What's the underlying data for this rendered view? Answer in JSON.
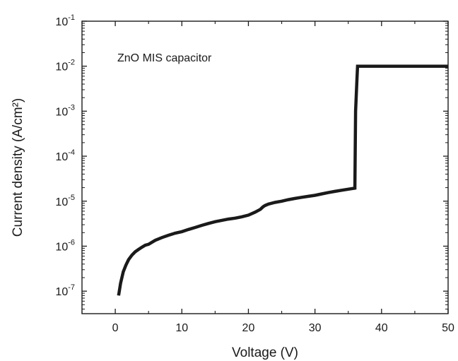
{
  "chart_data": {
    "type": "line",
    "xlabel": "Voltage (V)",
    "ylabel": "Current density (A/cm²)",
    "annotation": "ZnO MIS capacitor",
    "xlim": [
      -5,
      50
    ],
    "ylim_log10": [
      -7.5,
      -1
    ],
    "yscale": "log",
    "grid": false,
    "x_ticks": [
      0,
      10,
      20,
      30,
      40,
      50
    ],
    "y_ticks": [
      {
        "base": "10",
        "exp": "-1"
      },
      {
        "base": "10",
        "exp": "-2"
      },
      {
        "base": "10",
        "exp": "-3"
      },
      {
        "base": "10",
        "exp": "-4"
      },
      {
        "base": "10",
        "exp": "-5"
      },
      {
        "base": "10",
        "exp": "-6"
      },
      {
        "base": "10",
        "exp": "-7"
      }
    ],
    "series": [
      {
        "color": "#1a1a1a",
        "x": [
          0.5,
          0.8,
          1.2,
          1.6,
          2.0,
          2.5,
          3.0,
          3.5,
          4.0,
          4.5,
          5.0,
          6.0,
          7.0,
          8.0,
          9.0,
          10.0,
          11.0,
          12.0,
          13.0,
          14.0,
          15.0,
          16.0,
          17.0,
          18.0,
          19.0,
          20.0,
          21.0,
          21.8,
          22.2,
          22.5,
          23.0,
          24.0,
          25.0,
          26.0,
          27.0,
          28.0,
          29.0,
          30.0,
          31.0,
          32.0,
          33.0,
          34.0,
          35.0,
          36.0,
          36.1,
          36.3,
          36.4,
          40.0,
          45.0,
          50.0
        ],
        "y": [
          8e-08,
          1.5e-07,
          2.7e-07,
          3.8e-07,
          5e-07,
          6.3e-07,
          7.5e-07,
          8.5e-07,
          9.5e-07,
          1.05e-06,
          1.1e-06,
          1.35e-06,
          1.55e-06,
          1.75e-06,
          1.95e-06,
          2.1e-06,
          2.35e-06,
          2.6e-06,
          2.9e-06,
          3.2e-06,
          3.5e-06,
          3.75e-06,
          4e-06,
          4.2e-06,
          4.5e-06,
          4.9e-06,
          5.7e-06,
          6.6e-06,
          7.5e-06,
          8e-06,
          8.6e-06,
          9.4e-06,
          1e-05,
          1.08e-05,
          1.15e-05,
          1.22e-05,
          1.28e-05,
          1.35e-05,
          1.45e-05,
          1.55e-05,
          1.65e-05,
          1.75e-05,
          1.85e-05,
          1.95e-05,
          0.001,
          0.005,
          0.01,
          0.01,
          0.01,
          0.01
        ]
      }
    ]
  }
}
